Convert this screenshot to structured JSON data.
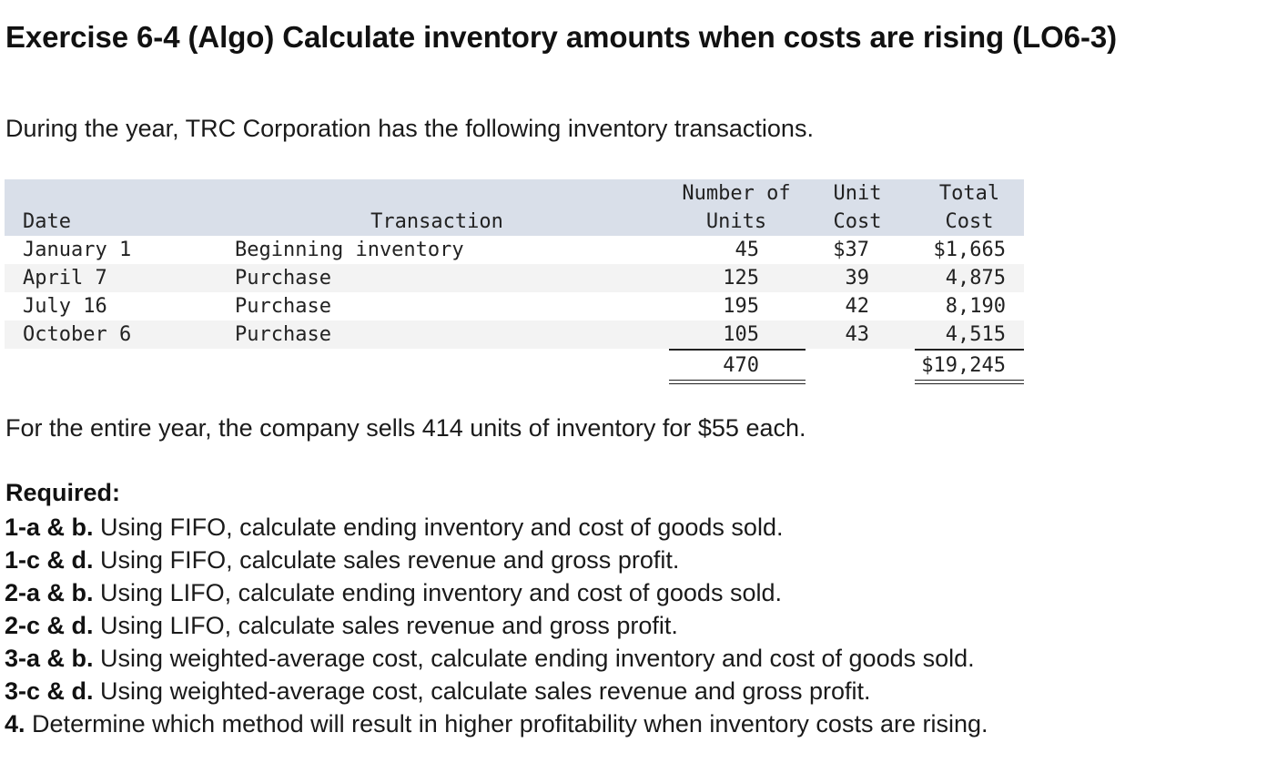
{
  "title": "Exercise 6-4 (Algo) Calculate inventory amounts when costs are rising (LO6-3)",
  "intro": "During the year, TRC Corporation has the following inventory transactions.",
  "table": {
    "headers": {
      "date": "Date",
      "transaction": "Transaction",
      "units_line1": "Number of",
      "units_line2": "Units",
      "unit_cost_line1": "Unit",
      "unit_cost_line2": "Cost",
      "total_cost_line1": "Total",
      "total_cost_line2": "Cost"
    },
    "rows": [
      {
        "date": "January 1",
        "transaction": "Beginning inventory",
        "units": "45",
        "unit_cost": "$37",
        "total_cost": "$1,665"
      },
      {
        "date": "April 7",
        "transaction": "Purchase",
        "units": "125",
        "unit_cost": "39",
        "total_cost": "4,875"
      },
      {
        "date": "July 16",
        "transaction": "Purchase",
        "units": "195",
        "unit_cost": "42",
        "total_cost": "8,190"
      },
      {
        "date": "October 6",
        "transaction": "Purchase",
        "units": "105",
        "unit_cost": "43",
        "total_cost": "4,515"
      }
    ],
    "totals": {
      "units": "470",
      "total_cost": "$19,245"
    }
  },
  "sales_text": "For the entire year, the company sells 414 units of inventory for $55 each.",
  "required": {
    "heading": "Required:",
    "items": [
      {
        "label": "1-a & b.",
        "text": "Using FIFO, calculate ending inventory and cost of goods sold."
      },
      {
        "label": "1-c & d.",
        "text": "Using FIFO, calculate sales revenue and gross profit."
      },
      {
        "label": "2-a & b.",
        "text": "Using LIFO, calculate ending inventory and cost of goods sold."
      },
      {
        "label": "2-c & d.",
        "text": "Using LIFO, calculate sales revenue and gross profit."
      },
      {
        "label": "3-a & b.",
        "text": "Using weighted-average cost, calculate ending inventory and cost of goods sold."
      },
      {
        "label": "3-c & d.",
        "text": "Using weighted-average cost, calculate sales revenue and gross profit."
      },
      {
        "label": "4.",
        "text": "Determine which method will result in higher profitability when inventory costs are rising."
      }
    ]
  },
  "colors": {
    "header_bg": "#d9dfe9",
    "alt_row_bg": "#f3f3f3"
  }
}
